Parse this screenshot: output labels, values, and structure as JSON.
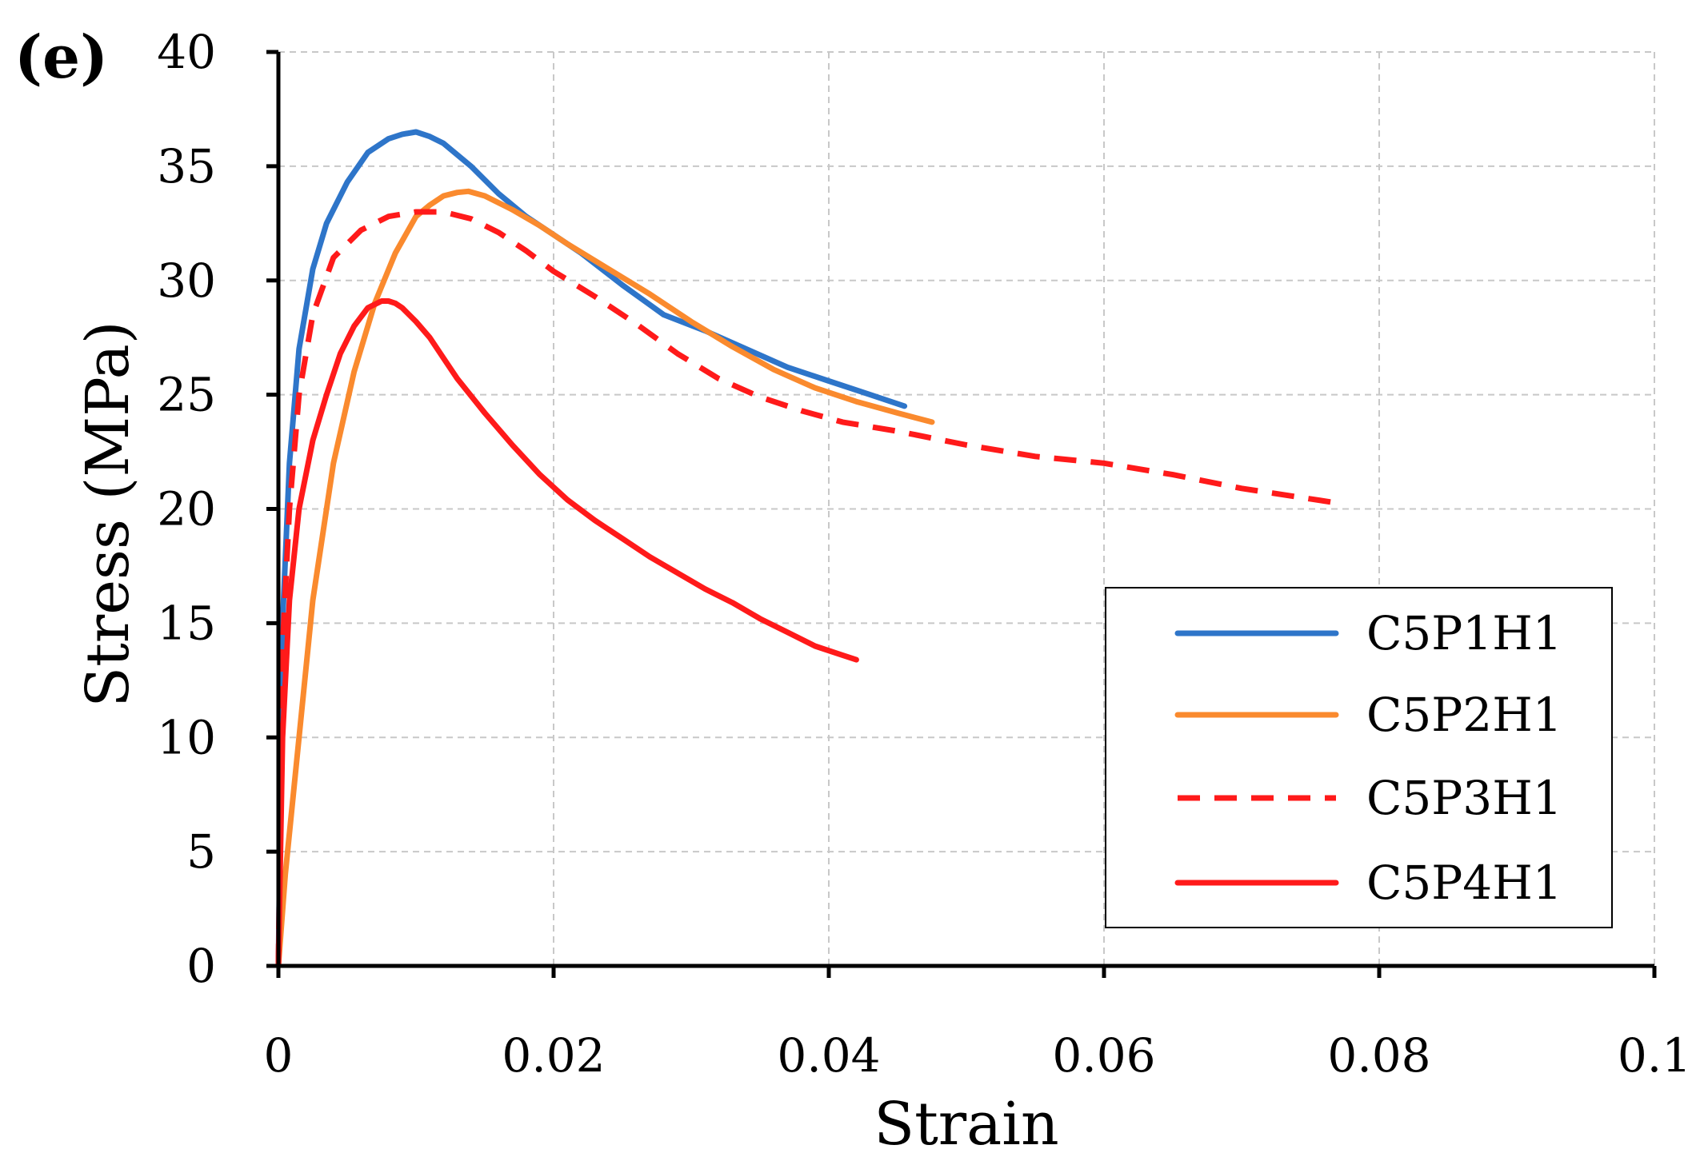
{
  "panel_label": "(e)",
  "chart_data": {
    "type": "line",
    "title": "",
    "xlabel": "Strain",
    "ylabel": "Stress (MPa)",
    "xlim": [
      0,
      0.1
    ],
    "ylim": [
      0,
      40
    ],
    "xticks": [
      0,
      0.02,
      0.04,
      0.06,
      0.08,
      0.1
    ],
    "xtick_labels": [
      "0",
      "0.02",
      "0.04",
      "0.06",
      "0.08",
      "0.1"
    ],
    "yticks": [
      0,
      5,
      10,
      15,
      20,
      25,
      30,
      35,
      40
    ],
    "ytick_labels": [
      "0",
      "5",
      "10",
      "15",
      "20",
      "25",
      "30",
      "35",
      "40"
    ],
    "grid": true,
    "legend_position": "bottom-right",
    "series": [
      {
        "name": "C5P1H1",
        "color": "#2E75C9",
        "style": "solid",
        "x": [
          0,
          0.0003,
          0.0008,
          0.0015,
          0.0025,
          0.0035,
          0.005,
          0.0065,
          0.008,
          0.009,
          0.01,
          0.011,
          0.012,
          0.014,
          0.016,
          0.018,
          0.02,
          0.022,
          0.025,
          0.028,
          0.031,
          0.034,
          0.037,
          0.04,
          0.043,
          0.0455
        ],
        "y": [
          0,
          15,
          22,
          27,
          30.5,
          32.5,
          34.3,
          35.6,
          36.2,
          36.4,
          36.5,
          36.3,
          36,
          35,
          33.8,
          32.8,
          32,
          31.2,
          29.8,
          28.5,
          27.8,
          27,
          26.2,
          25.6,
          25,
          24.5
        ]
      },
      {
        "name": "C5P2H1",
        "color": "#FA8A2E",
        "style": "solid",
        "x": [
          0,
          0.0005,
          0.0015,
          0.0025,
          0.004,
          0.0055,
          0.007,
          0.0085,
          0.01,
          0.011,
          0.012,
          0.013,
          0.0138,
          0.015,
          0.017,
          0.019,
          0.021,
          0.024,
          0.027,
          0.03,
          0.033,
          0.036,
          0.039,
          0.042,
          0.045,
          0.0475
        ],
        "y": [
          0,
          4,
          10,
          16,
          22,
          26,
          29,
          31.2,
          32.8,
          33.3,
          33.7,
          33.85,
          33.9,
          33.7,
          33.1,
          32.4,
          31.6,
          30.5,
          29.4,
          28.2,
          27.1,
          26.1,
          25.3,
          24.7,
          24.2,
          23.8
        ]
      },
      {
        "name": "C5P3H1",
        "color": "#FF1A1A",
        "style": "dashed",
        "x": [
          0,
          0.0003,
          0.0008,
          0.0015,
          0.0025,
          0.004,
          0.006,
          0.008,
          0.01,
          0.012,
          0.014,
          0.016,
          0.018,
          0.02,
          0.023,
          0.026,
          0.029,
          0.032,
          0.035,
          0.038,
          0.041,
          0.045,
          0.05,
          0.055,
          0.06,
          0.065,
          0.07,
          0.0765
        ],
        "y": [
          0,
          14,
          20,
          25,
          28.5,
          31,
          32.2,
          32.8,
          33,
          33,
          32.7,
          32.1,
          31.3,
          30.4,
          29.3,
          28.1,
          26.8,
          25.7,
          24.9,
          24.3,
          23.8,
          23.4,
          22.8,
          22.3,
          22,
          21.5,
          20.9,
          20.3
        ]
      },
      {
        "name": "C5P4H1",
        "color": "#FF1A1A",
        "style": "solid",
        "x": [
          0,
          0.0003,
          0.0008,
          0.0015,
          0.0025,
          0.0035,
          0.0045,
          0.0055,
          0.0065,
          0.0075,
          0.008,
          0.0085,
          0.009,
          0.01,
          0.011,
          0.012,
          0.013,
          0.015,
          0.017,
          0.019,
          0.021,
          0.023,
          0.025,
          0.027,
          0.029,
          0.031,
          0.033,
          0.035,
          0.037,
          0.039,
          0.041,
          0.042
        ],
        "y": [
          0,
          10,
          16,
          20,
          23,
          25,
          26.8,
          28,
          28.8,
          29.1,
          29.1,
          29,
          28.8,
          28.2,
          27.5,
          26.6,
          25.7,
          24.2,
          22.8,
          21.5,
          20.4,
          19.5,
          18.7,
          17.9,
          17.2,
          16.5,
          15.9,
          15.2,
          14.6,
          14,
          13.6,
          13.4
        ]
      }
    ]
  }
}
